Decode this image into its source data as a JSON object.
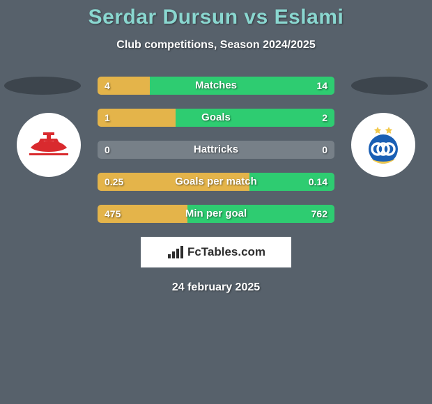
{
  "colors": {
    "background": "#57616b",
    "title": "#8ad7d0",
    "subtitle": "#ffffff",
    "bar_track": "#778088",
    "bar_left": "#e4b44a",
    "bar_right": "#2ecc71",
    "shadow": "#3d454d",
    "date": "#ffffff",
    "brand_bars": "#2d2d2d"
  },
  "title": "Serdar Dursun vs Eslami",
  "subtitle": "Club competitions, Season 2024/2025",
  "date": "24 february 2025",
  "brand": "FcTables.com",
  "left_badge": {
    "name": "persepolis-badge",
    "primary": "#d92a2e",
    "secondary": "#ffffff"
  },
  "right_badge": {
    "name": "esteghlal-badge",
    "primary": "#1a5fb4",
    "secondary": "#f2c94c"
  },
  "stats": [
    {
      "label": "Matches",
      "left_val": "4",
      "right_val": "14",
      "left_pct": 22,
      "right_pct": 78
    },
    {
      "label": "Goals",
      "left_val": "1",
      "right_val": "2",
      "left_pct": 33,
      "right_pct": 67
    },
    {
      "label": "Hattricks",
      "left_val": "0",
      "right_val": "0",
      "left_pct": 0,
      "right_pct": 0
    },
    {
      "label": "Goals per match",
      "left_val": "0.25",
      "right_val": "0.14",
      "left_pct": 64,
      "right_pct": 36
    },
    {
      "label": "Min per goal",
      "left_val": "475",
      "right_val": "762",
      "left_pct": 38,
      "right_pct": 62
    }
  ],
  "typography": {
    "title_fontsize": 30,
    "subtitle_fontsize": 16,
    "stat_label_fontsize": 15,
    "stat_val_fontsize": 14,
    "date_fontsize": 16,
    "brand_fontsize": 17
  }
}
